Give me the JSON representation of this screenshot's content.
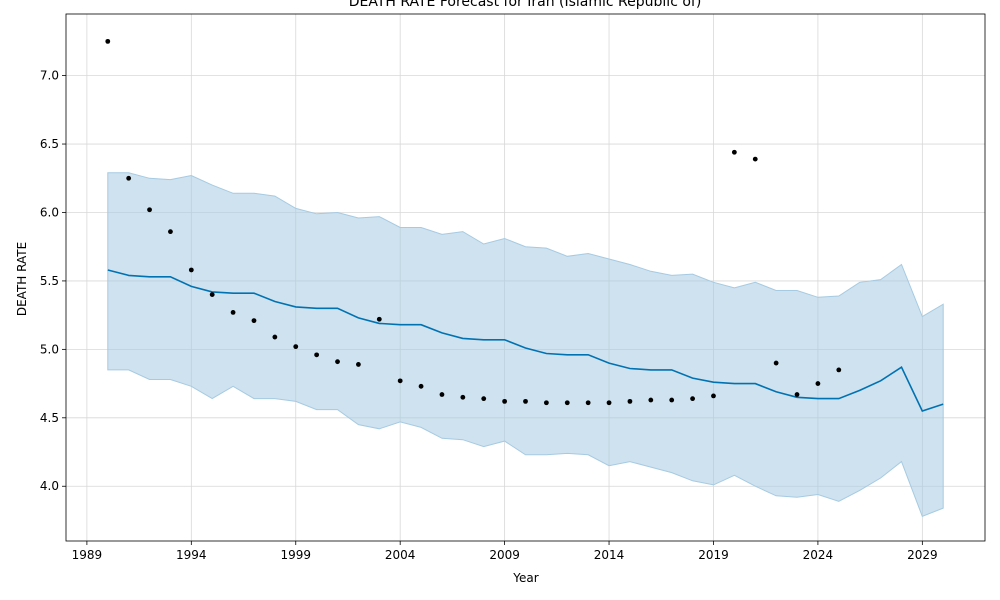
{
  "chart_data": {
    "type": "line",
    "title": "DEATH RATE Forecast for Iran (Islamic Republic of)",
    "xlabel": "Year",
    "ylabel": "DEATH RATE",
    "xlim": [
      1988,
      2032
    ],
    "ylim": [
      3.6,
      7.45
    ],
    "x_ticks": [
      1989,
      1994,
      1999,
      2004,
      2009,
      2014,
      2019,
      2024,
      2029
    ],
    "y_ticks": [
      4.0,
      4.5,
      5.0,
      5.5,
      6.0,
      6.5,
      7.0
    ],
    "y_tick_labels": [
      "4.0",
      "4.5",
      "5.0",
      "5.5",
      "6.0",
      "6.5",
      "7.0"
    ],
    "grid": true,
    "colors": {
      "forecast": "#0072B2",
      "interval_fill": "#A6CAE2",
      "observed": "#000000"
    },
    "observed": {
      "x": [
        1990,
        1991,
        1992,
        1993,
        1994,
        1995,
        1996,
        1997,
        1998,
        1999,
        2000,
        2001,
        2002,
        2003,
        2004,
        2005,
        2006,
        2007,
        2008,
        2009,
        2010,
        2011,
        2012,
        2013,
        2014,
        2015,
        2016,
        2017,
        2018,
        2019,
        2020,
        2021,
        2022,
        2023,
        2024,
        2025
      ],
      "y": [
        7.25,
        6.25,
        6.02,
        5.86,
        5.58,
        5.4,
        5.27,
        5.21,
        5.09,
        5.02,
        4.96,
        4.91,
        4.89,
        5.22,
        4.77,
        4.73,
        4.67,
        4.65,
        4.64,
        4.62,
        4.62,
        4.61,
        4.61,
        4.61,
        4.61,
        4.62,
        4.63,
        4.63,
        4.64,
        4.66,
        6.44,
        6.39,
        4.9,
        4.67,
        4.75,
        4.85
      ]
    },
    "forecast": {
      "x": [
        1990,
        1991,
        1992,
        1993,
        1994,
        1995,
        1996,
        1997,
        1998,
        1999,
        2000,
        2001,
        2002,
        2003,
        2004,
        2005,
        2006,
        2007,
        2008,
        2009,
        2010,
        2011,
        2012,
        2013,
        2014,
        2015,
        2016,
        2017,
        2018,
        2019,
        2020,
        2021,
        2022,
        2023,
        2024,
        2025,
        2026,
        2027,
        2028,
        2029,
        2030
      ],
      "yhat": [
        5.58,
        5.54,
        5.53,
        5.53,
        5.46,
        5.42,
        5.41,
        5.41,
        5.35,
        5.31,
        5.3,
        5.3,
        5.23,
        5.19,
        5.18,
        5.18,
        5.12,
        5.08,
        5.07,
        5.07,
        5.01,
        4.97,
        4.96,
        4.96,
        4.9,
        4.86,
        4.85,
        4.85,
        4.79,
        4.76,
        4.75,
        4.75,
        4.69,
        4.65,
        4.64,
        4.64,
        4.7,
        4.77,
        4.87,
        4.55,
        4.6
      ],
      "upper": [
        6.29,
        6.29,
        6.25,
        6.24,
        6.27,
        6.2,
        6.14,
        6.14,
        6.12,
        6.03,
        5.99,
        6.0,
        5.96,
        5.97,
        5.89,
        5.89,
        5.84,
        5.86,
        5.77,
        5.81,
        5.75,
        5.74,
        5.68,
        5.7,
        5.66,
        5.62,
        5.57,
        5.54,
        5.55,
        5.49,
        5.45,
        5.49,
        5.43,
        5.43,
        5.38,
        5.39,
        5.49,
        5.51,
        5.62,
        5.24,
        5.33
      ],
      "lower": [
        4.85,
        4.85,
        4.78,
        4.78,
        4.73,
        4.64,
        4.73,
        4.64,
        4.64,
        4.62,
        4.56,
        4.56,
        4.45,
        4.42,
        4.47,
        4.43,
        4.35,
        4.34,
        4.29,
        4.33,
        4.23,
        4.23,
        4.24,
        4.23,
        4.15,
        4.18,
        4.14,
        4.1,
        4.04,
        4.01,
        4.08,
        4.0,
        3.93,
        3.92,
        3.94,
        3.89,
        3.97,
        4.06,
        4.18,
        3.78,
        3.84
      ]
    }
  }
}
